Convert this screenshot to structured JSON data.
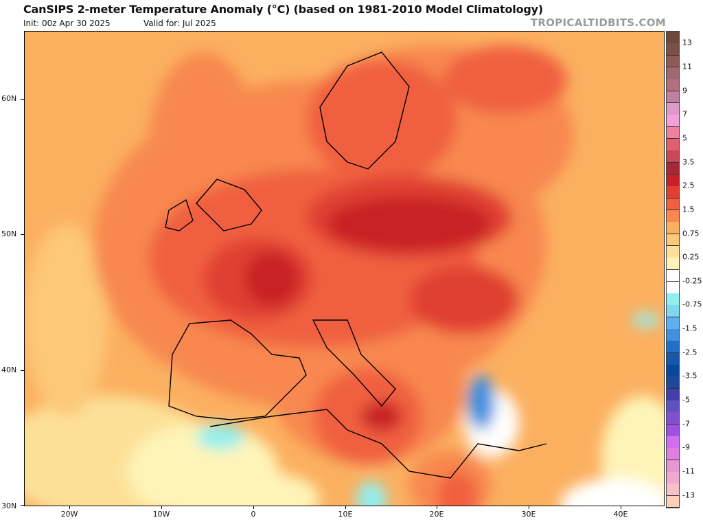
{
  "header": {
    "title": "CanSIPS 2-meter Temperature Anomaly (°C) (based on 1981-2010 Model Climatology)",
    "init": "Init: 00z Apr 30 2025",
    "valid": "Valid for: Jul 2025",
    "watermark": "TROPICALTIDBITS.COM"
  },
  "map": {
    "lat_labels": [
      "60N",
      "50N",
      "40N",
      "30N"
    ],
    "lon_labels": [
      "20W",
      "10W",
      "0",
      "10E",
      "20E",
      "30E",
      "40E"
    ],
    "background_color": "#fbb060"
  },
  "colorbar": {
    "labels": [
      "13",
      "11",
      "9",
      "7",
      "5",
      "3.5",
      "2.5",
      "1.5",
      "0.75",
      "0.25",
      "-0.25",
      "-0.75",
      "-1.5",
      "-2.5",
      "-3.5",
      "-5",
      "-7",
      "-9",
      "-11",
      "-13"
    ],
    "colors": [
      "#6b4a3a",
      "#7a5048",
      "#8e5a5a",
      "#a06870",
      "#b07080",
      "#c080a0",
      "#dd99c8",
      "#f5a0d8",
      "#f080a0",
      "#e06070",
      "#c84858",
      "#a82838",
      "#c82028",
      "#e04030",
      "#f06040",
      "#f88850",
      "#fbb060",
      "#fdc878",
      "#fde098",
      "#fef4b8",
      "#ffffff",
      "#ffffff",
      "#90f0f0",
      "#80d8f0",
      "#60b0f0",
      "#4090e0",
      "#2070c8",
      "#1858a8",
      "#084898",
      "#204898",
      "#4040a8",
      "#6050c0",
      "#8050d0",
      "#a050e0",
      "#d070f0",
      "#e080e0",
      "#e898d0",
      "#f0a8d0",
      "#f8c0c8",
      "#ffd0b8"
    ]
  }
}
